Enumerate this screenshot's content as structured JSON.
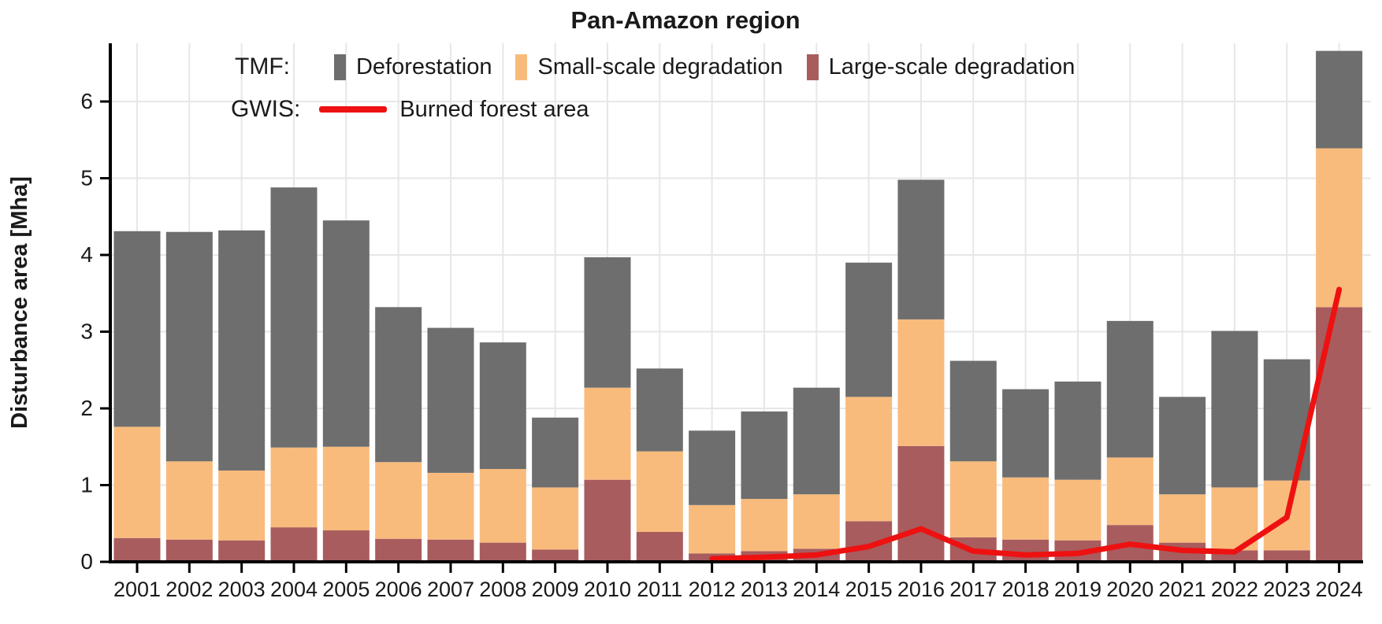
{
  "chart_data": {
    "type": "bar",
    "title": "Pan-Amazon region",
    "ylabel": "Disturbance area [Mha]",
    "xlabel": "",
    "ylim": [
      0,
      6.8
    ],
    "y_ticks": [
      0,
      1,
      2,
      3,
      4,
      5,
      6
    ],
    "grid": true,
    "legend_position": "top-left-inside",
    "categories": [
      2001,
      2002,
      2003,
      2004,
      2005,
      2006,
      2007,
      2008,
      2009,
      2010,
      2011,
      2012,
      2013,
      2014,
      2015,
      2016,
      2017,
      2018,
      2019,
      2020,
      2021,
      2022,
      2023,
      2024
    ],
    "stacked": true,
    "series": [
      {
        "name": "Large-scale degradation",
        "source": "TMF",
        "color": "#A85C5E",
        "values": [
          0.31,
          0.29,
          0.28,
          0.45,
          0.41,
          0.3,
          0.29,
          0.25,
          0.16,
          1.07,
          0.39,
          0.11,
          0.14,
          0.17,
          0.53,
          1.51,
          0.32,
          0.29,
          0.28,
          0.48,
          0.25,
          0.15,
          0.15,
          3.32
        ]
      },
      {
        "name": "Small-scale degradation",
        "source": "TMF",
        "color": "#F8BB7C",
        "values": [
          1.45,
          1.02,
          0.91,
          1.04,
          1.09,
          1.0,
          0.87,
          0.96,
          0.81,
          1.2,
          1.05,
          0.63,
          0.68,
          0.71,
          1.62,
          1.65,
          0.99,
          0.81,
          0.79,
          0.88,
          0.63,
          0.82,
          0.91,
          2.07
        ]
      },
      {
        "name": "Deforestation",
        "source": "TMF",
        "color": "#6E6E6E",
        "values": [
          2.55,
          2.99,
          3.13,
          3.39,
          2.95,
          2.02,
          1.89,
          1.65,
          0.91,
          1.7,
          1.08,
          0.97,
          1.14,
          1.39,
          1.75,
          1.82,
          1.31,
          1.15,
          1.28,
          1.78,
          1.27,
          2.04,
          1.58,
          1.27
        ]
      }
    ],
    "line_series": {
      "name": "Burned forest area",
      "source": "GWIS",
      "color": "#EE1111",
      "x": [
        2012,
        2013,
        2014,
        2015,
        2016,
        2017,
        2018,
        2019,
        2020,
        2021,
        2022,
        2023,
        2024
      ],
      "values": [
        0.04,
        0.06,
        0.09,
        0.2,
        0.43,
        0.14,
        0.09,
        0.11,
        0.23,
        0.15,
        0.13,
        0.58,
        3.55
      ]
    }
  },
  "legend": {
    "tmf_label": "TMF:",
    "gwis_label": "GWIS:",
    "deforestation_label": "Deforestation",
    "small_scale_label": "Small-scale degradation",
    "large_scale_label": "Large-scale degradation",
    "burned_label": "Burned forest area"
  },
  "colors": {
    "deforestation": "#6E6E6E",
    "small_scale": "#F8BB7C",
    "large_scale": "#A85C5E",
    "burned_line": "#EE1111",
    "gridline": "#E7E7E7",
    "axis": "#000000"
  }
}
